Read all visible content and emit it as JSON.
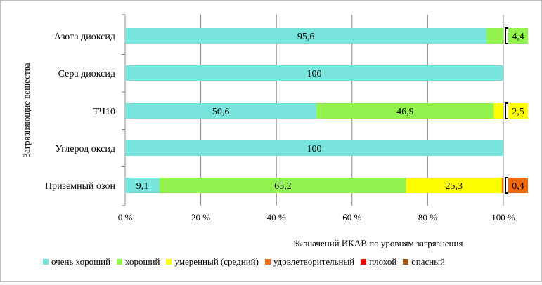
{
  "chart_data": {
    "type": "bar",
    "orientation": "horizontal",
    "stacked": "percent",
    "title": "",
    "xlabel": "% значений ИКАВ по уровням загрязнения",
    "ylabel": "Загрязняющие вещества",
    "xlim": [
      0,
      100
    ],
    "xticks": [
      "0 %",
      "20 %",
      "40 %",
      "60 %",
      "80 %",
      "100 %"
    ],
    "grid": "vertical",
    "legend_position": "bottom",
    "categories": [
      "Азота диоксид",
      "Сера диоксид",
      "ТЧ10",
      "Углерод оксид",
      "Приземный озон"
    ],
    "series": [
      {
        "name": "очень хороший",
        "color": "#79e4dc",
        "values": [
          95.6,
          100,
          50.6,
          100,
          9.1
        ],
        "labels": [
          "95,6",
          "100",
          "50,6",
          "100",
          "9,1"
        ]
      },
      {
        "name": "хороший",
        "color": "#92f24e",
        "values": [
          4.4,
          0,
          46.9,
          0,
          65.2
        ],
        "labels": [
          "4,4",
          "",
          "46,9",
          "",
          "65,2"
        ]
      },
      {
        "name": "умеренный (средний)",
        "color": "#ffff00",
        "values": [
          0,
          0,
          2.5,
          0,
          25.3
        ],
        "labels": [
          "",
          "",
          "2,5",
          "",
          "25,3"
        ]
      },
      {
        "name": "удовлетворительный",
        "color": "#f26a10",
        "values": [
          0,
          0,
          0,
          0,
          0.4
        ],
        "labels": [
          "",
          "",
          "",
          "",
          "0,4"
        ]
      },
      {
        "name": "плохой",
        "color": "#ff0000",
        "values": [
          0,
          0,
          0,
          0,
          0
        ],
        "labels": [
          "",
          "",
          "",
          "",
          ""
        ]
      },
      {
        "name": "опасный",
        "color": "#a0520f",
        "values": [
          0,
          0,
          0,
          0,
          0
        ],
        "labels": [
          "",
          "",
          "",
          "",
          ""
        ]
      }
    ]
  }
}
